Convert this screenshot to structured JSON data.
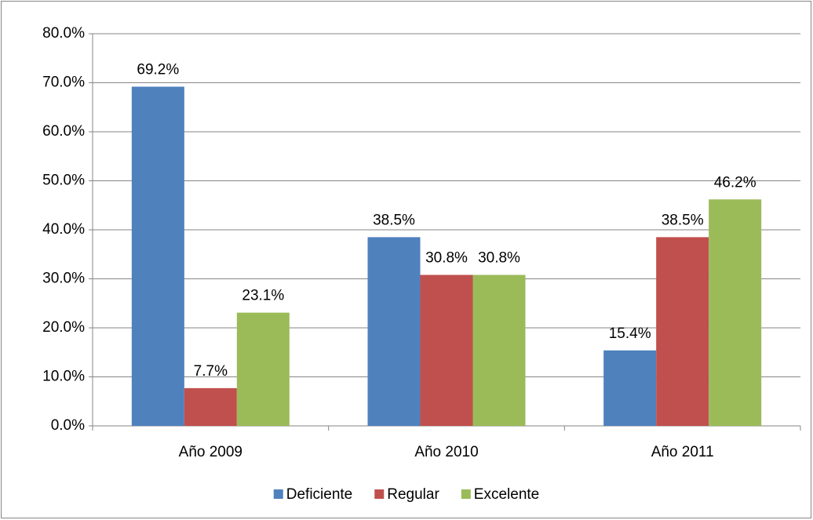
{
  "chart_data": {
    "type": "bar",
    "categories": [
      "Año 2009",
      "Año 2010",
      "Año 2011"
    ],
    "series": [
      {
        "name": "Deficiente",
        "color": "#4f81bd",
        "values": [
          69.2,
          38.5,
          15.4
        ],
        "value_labels": [
          "69.2%",
          "38.5%",
          "15.4%"
        ]
      },
      {
        "name": "Regular",
        "color": "#c0504d",
        "values": [
          7.7,
          30.8,
          38.5
        ],
        "value_labels": [
          "7.7%",
          "30.8%",
          "38.5%"
        ]
      },
      {
        "name": "Excelente",
        "color": "#9bbb59",
        "values": [
          23.1,
          30.8,
          46.2
        ],
        "value_labels": [
          "23.1%",
          "30.8%",
          "46.2%"
        ]
      }
    ],
    "ylim": [
      0,
      80
    ],
    "yticks": [
      {
        "value": 0,
        "label": "0.0%"
      },
      {
        "value": 10,
        "label": "10.0%"
      },
      {
        "value": 20,
        "label": "20.0%"
      },
      {
        "value": 30,
        "label": "30.0%"
      },
      {
        "value": 40,
        "label": "40.0%"
      },
      {
        "value": 50,
        "label": "50.0%"
      },
      {
        "value": 60,
        "label": "60.0%"
      },
      {
        "value": 70,
        "label": "70.0%"
      },
      {
        "value": 80,
        "label": "80.0%"
      }
    ],
    "grid": true,
    "legend": "bottom"
  }
}
